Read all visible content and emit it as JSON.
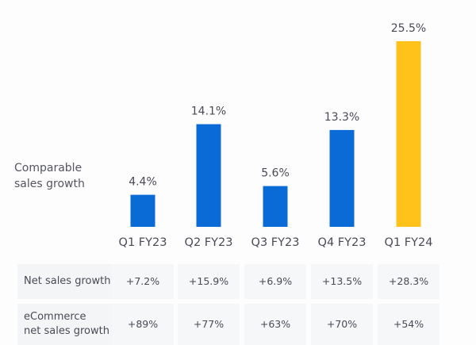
{
  "chart_data": {
    "type": "bar",
    "title": "",
    "ylabel": "Comparable sales growth",
    "xlabel": "",
    "categories": [
      "Q1 FY23",
      "Q2 FY23",
      "Q3 FY23",
      "Q4 FY23",
      "Q1 FY24"
    ],
    "values": [
      4.4,
      14.1,
      5.6,
      13.3,
      25.5
    ],
    "value_labels": [
      "4.4%",
      "14.1%",
      "5.6%",
      "13.3%",
      "25.5%"
    ],
    "colors": [
      "#0b6bd6",
      "#0b6bd6",
      "#0b6bd6",
      "#0b6bd6",
      "#ffc21a"
    ],
    "ylim": [
      0,
      27
    ],
    "grid": false,
    "legend": "none"
  },
  "side_label": [
    "Comparable",
    "sales growth"
  ],
  "table": {
    "rows": [
      {
        "label": [
          "Net sales growth"
        ],
        "values": [
          "+7.2%",
          "+15.9%",
          "+6.9%",
          "+13.5%",
          "+28.3%"
        ]
      },
      {
        "label": [
          "eCommerce",
          "net sales growth"
        ],
        "values": [
          "+89%",
          "+77%",
          "+63%",
          "+70%",
          "+54%"
        ]
      }
    ]
  }
}
